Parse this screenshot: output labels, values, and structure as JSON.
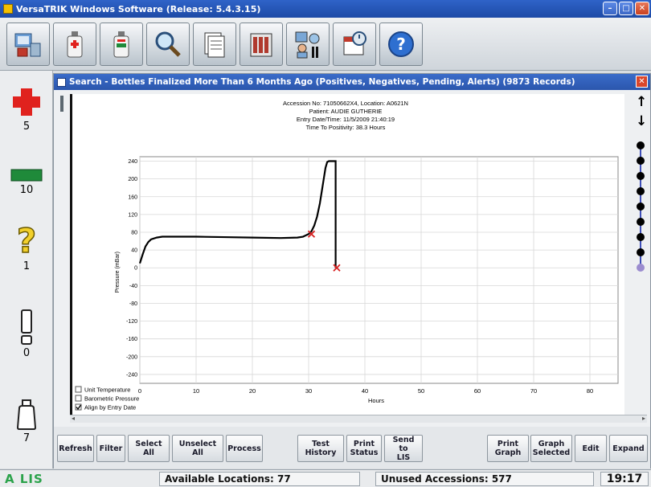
{
  "window": {
    "title": "VersaTRIK Windows Software   (Release: 5.4.3.15)",
    "minimize": "–",
    "maximize": "□",
    "close": "✕"
  },
  "toolbar": {
    "buttons": [
      {
        "icon": "instrument-icon"
      },
      {
        "icon": "red-bottle-icon"
      },
      {
        "icon": "green-bottle-icon"
      },
      {
        "icon": "magnifier-icon"
      },
      {
        "icon": "document-icon"
      },
      {
        "icon": "bottle-rack-icon"
      },
      {
        "icon": "computer-users-icon"
      },
      {
        "icon": "calendar-icon"
      },
      {
        "icon": "help-icon"
      }
    ]
  },
  "left_panel": {
    "positive": {
      "count": "5",
      "color": "#e0221e",
      "icon": "red-cross-icon"
    },
    "negative": {
      "count": "10",
      "color": "#1f8a3a",
      "icon": "green-bar-icon"
    },
    "pending": {
      "count": "1",
      "color": "#f2d02b",
      "icon": "question-icon"
    },
    "alerts": {
      "count": "0",
      "icon": "exclamation-icon"
    },
    "empty": {
      "count": "7",
      "icon": "empty-bottle-icon"
    }
  },
  "search_window": {
    "title": "Search - Bottles Finalized More Than 6 Months Ago (Positives, Negatives, Pending, Alerts) (9873 Records)",
    "close": "✕"
  },
  "graph_header": {
    "line1": "Accession No: 71050662X4,  Location: A0621N",
    "line2": "Patient: AUDIE GUTHERIE",
    "line3": "Entry Date/Time: 11/5/2009 21:40:19",
    "line4": "Time To Positivity: 38.3 Hours"
  },
  "checkboxes": [
    {
      "label": "Unit Temperature",
      "checked": false
    },
    {
      "label": "Barometric Pressure",
      "checked": false
    },
    {
      "label": "Align by Entry Date",
      "checked": true
    }
  ],
  "chart_data": {
    "type": "line",
    "xlabel": "Hours",
    "ylabel": "Pressure (mBar)",
    "xlim": [
      0,
      85
    ],
    "ylim": [
      -260,
      250
    ],
    "xticks": [
      0,
      10,
      20,
      30,
      40,
      50,
      60,
      70,
      80
    ],
    "yticks": [
      240,
      200,
      160,
      120,
      80,
      40,
      0,
      -40,
      -80,
      -120,
      -160,
      -200,
      -240
    ],
    "grid": true,
    "series": [
      {
        "color": "#000000",
        "x": [
          0,
          0.5,
          1,
          1.5,
          2,
          3,
          4,
          5,
          7,
          10,
          15,
          20,
          25,
          28,
          29,
          30,
          30.5,
          31,
          31.5,
          32,
          32.5,
          33,
          33.3,
          33.6,
          34,
          34.5,
          34.8,
          34.8
        ],
        "y": [
          10,
          30,
          48,
          58,
          64,
          68,
          70,
          70,
          70,
          70,
          69,
          68,
          67,
          68,
          70,
          76,
          82,
          95,
          115,
          145,
          185,
          225,
          238,
          240,
          240,
          240,
          240,
          0
        ]
      }
    ],
    "markers": [
      {
        "x": 30.5,
        "y": 76,
        "symbol": "x",
        "color": "#d81e1e"
      },
      {
        "x": 35,
        "y": 0,
        "symbol": "x",
        "color": "#d81e1e"
      }
    ]
  },
  "timeline_dots": 9,
  "buttons": {
    "refresh": "Refresh",
    "filter": "Filter",
    "select_all": "Select All",
    "unselect_all": "Unselect All",
    "process": "Process",
    "test_history": "Test\nHistory",
    "print_status": "Print\nStatus",
    "send_to_lis": "Send to\nLIS",
    "print_graph": "Print\nGraph",
    "graph_selected": "Graph\nSelected",
    "edit": "Edit",
    "expand": "Expand"
  },
  "status_bar": {
    "logo": "A LIS",
    "available_locations": "Available Locations: 77",
    "unused_accessions": "Unused Accessions: 577",
    "clock": "19:17"
  }
}
